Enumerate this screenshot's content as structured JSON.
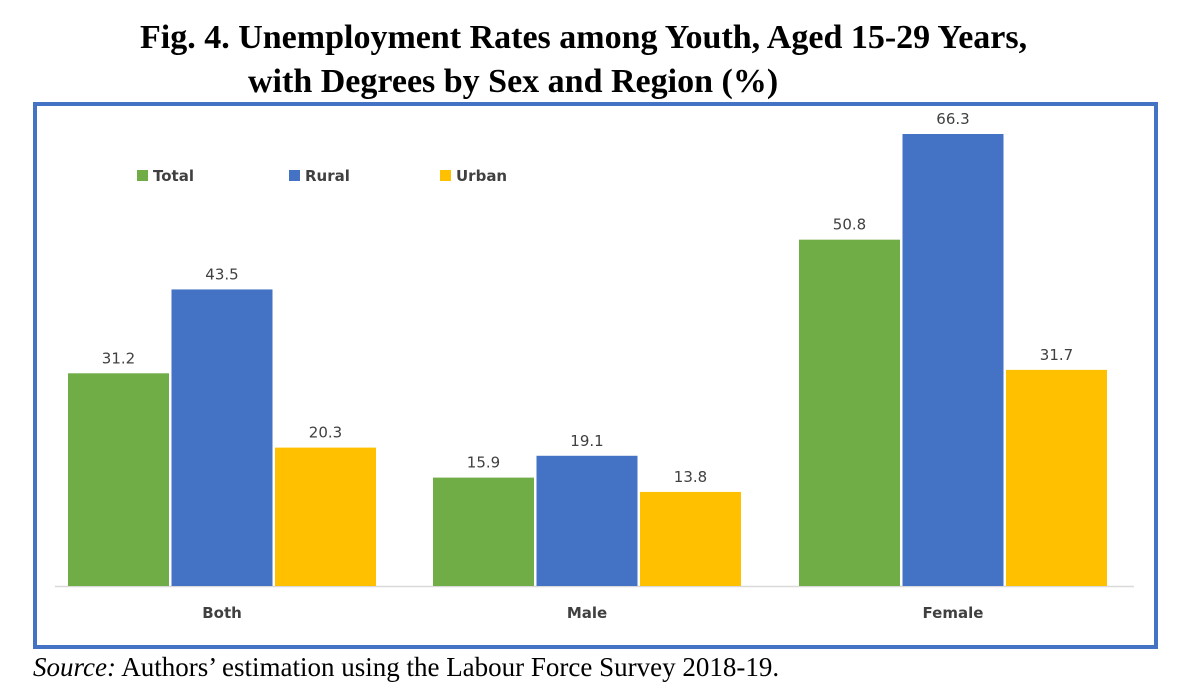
{
  "title_line1": "Fig. 4.  Unemployment Rates among Youth, Aged 15-29 Years,",
  "title_line2": "with Degrees by Sex and Region (%)",
  "source_label": "Source:",
  "source_text": " Authors’ estimation using the Labour Force Survey 2018-19.",
  "chart_data": {
    "type": "bar",
    "title": "Fig. 4.  Unemployment Rates among Youth, Aged 15-29 Years, with Degrees by Sex and Region (%)",
    "categories": [
      "Both",
      "Male",
      "Female"
    ],
    "series": [
      {
        "name": "Total",
        "color": "#70ad47",
        "values": [
          31.2,
          15.9,
          50.8
        ]
      },
      {
        "name": "Rural",
        "color": "#4472c4",
        "values": [
          43.5,
          19.1,
          66.3
        ]
      },
      {
        "name": "Urban",
        "color": "#ffc000",
        "values": [
          20.3,
          13.8,
          31.7
        ]
      }
    ],
    "value_labels": [
      [
        "31.2",
        "43.5",
        "20.3"
      ],
      [
        "15.9",
        "19.1",
        "13.8"
      ],
      [
        "50.8",
        "66.3",
        "31.7"
      ]
    ],
    "xlabel": "",
    "ylabel": "",
    "ylim": [
      0,
      66.3
    ],
    "grid": false,
    "legend_position": "top-left",
    "frame_color": "#4472c4"
  }
}
